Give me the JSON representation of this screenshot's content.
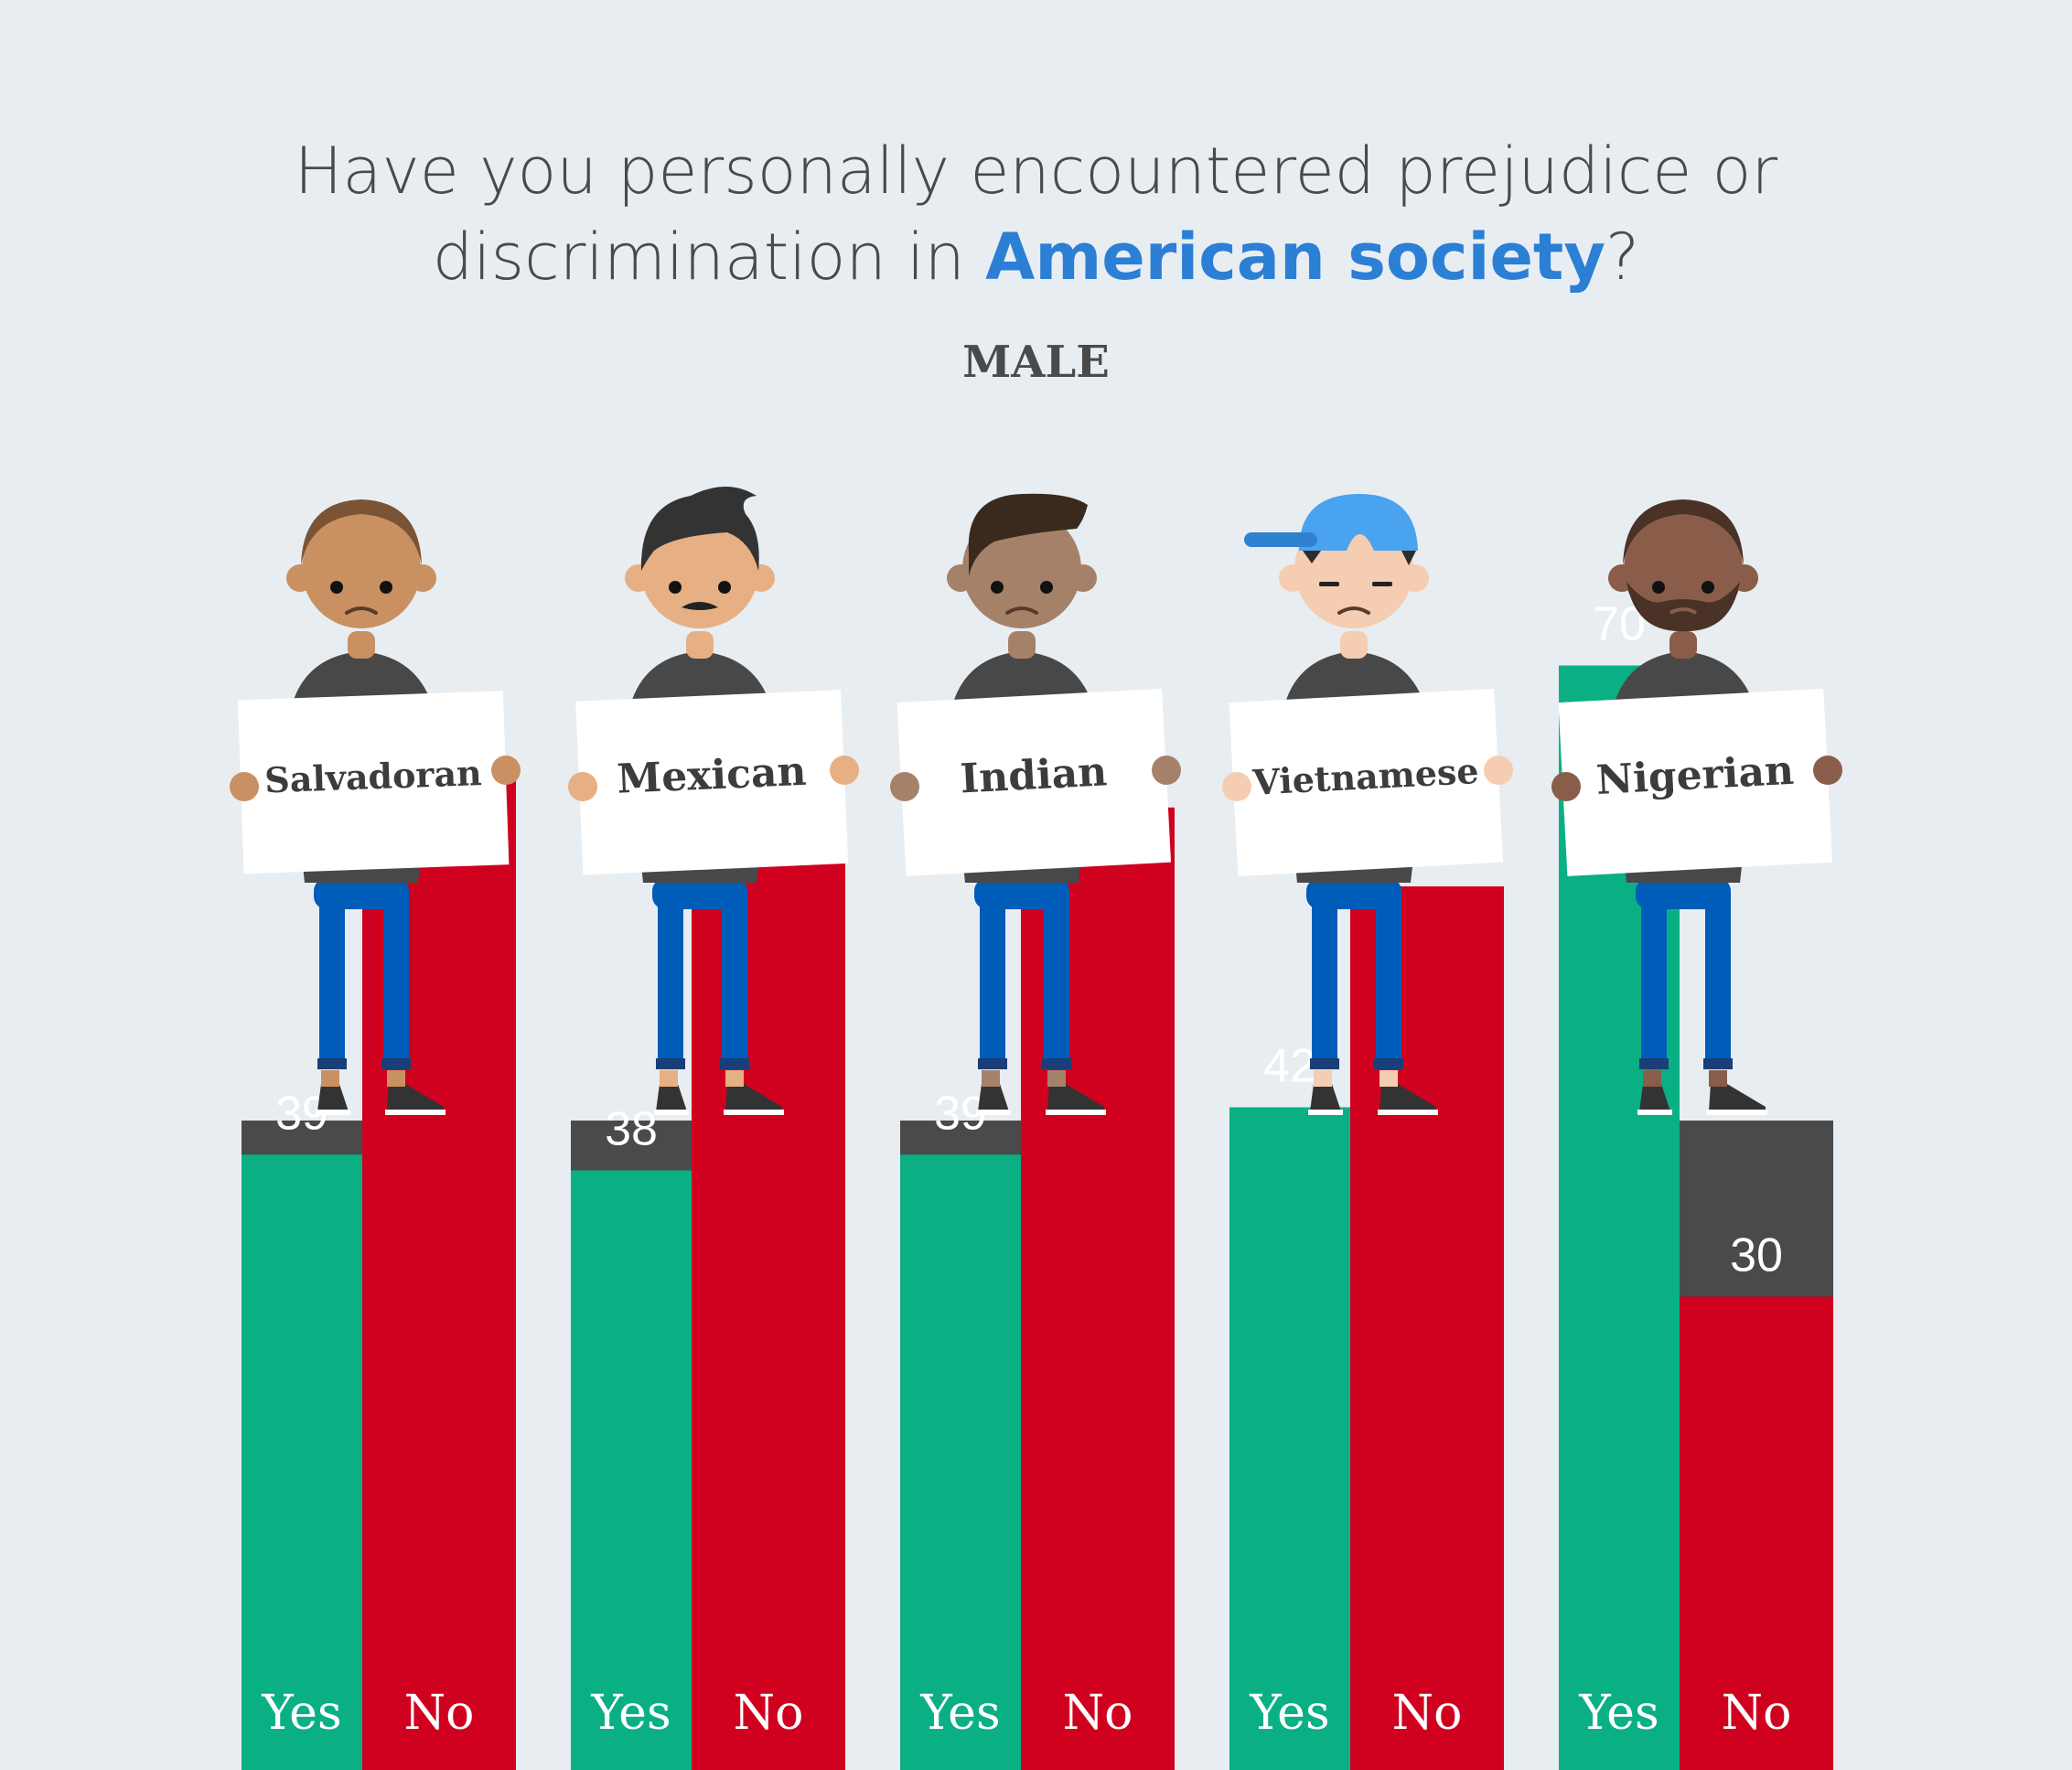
{
  "title": {
    "line1": "Have you personally encountered prejudice or",
    "line2_before": "discrimination in ",
    "line2_highlight": "American society",
    "line2_after": "?"
  },
  "subtitle": "MALE",
  "colors": {
    "background": "#e8edf1",
    "bar_background": "#4a4a4a",
    "yes": "#0ab084",
    "no": "#cf011f",
    "highlight": "#2b7fd4",
    "jeans": "#005cb9",
    "shirt": "#484848"
  },
  "chart_data": {
    "type": "bar",
    "title": "Have you personally encountered prejudice or discrimination in American society?",
    "subtitle": "MALE",
    "categories": [
      "Salvadoran",
      "Mexican",
      "Indian",
      "Vietnamese",
      "Nigerian"
    ],
    "series": [
      {
        "name": "Yes",
        "values": [
          39,
          38,
          39,
          42,
          70
        ],
        "color": "#0ab084"
      },
      {
        "name": "No",
        "values": [
          63,
          58,
          61,
          56,
          30
        ],
        "color": "#cf011f"
      }
    ],
    "ylim": [
      0,
      100
    ],
    "grid": false,
    "legend": "none"
  },
  "figures": [
    {
      "sign": "Salvadoran",
      "skin": "#c99062",
      "hair": "#7a5435",
      "hair_style": "short",
      "mouth": "frown"
    },
    {
      "sign": "Mexican",
      "skin": "#e6b084",
      "hair": "#333333",
      "hair_style": "quiff",
      "mouth": "mustache"
    },
    {
      "sign": "Indian",
      "skin": "#a6816a",
      "hair": "#3a2a1e",
      "hair_style": "swoop",
      "mouth": "frown"
    },
    {
      "sign": "Vietnamese",
      "skin": "#f4cdb2",
      "hair": "#2d2d2d",
      "hair_style": "cap",
      "cap_color": "#4aa3ef",
      "mouth": "frown"
    },
    {
      "sign": "Nigerian",
      "skin": "#8a5d4a",
      "hair": "#4a3226",
      "hair_style": "short",
      "mouth": "beard"
    }
  ]
}
